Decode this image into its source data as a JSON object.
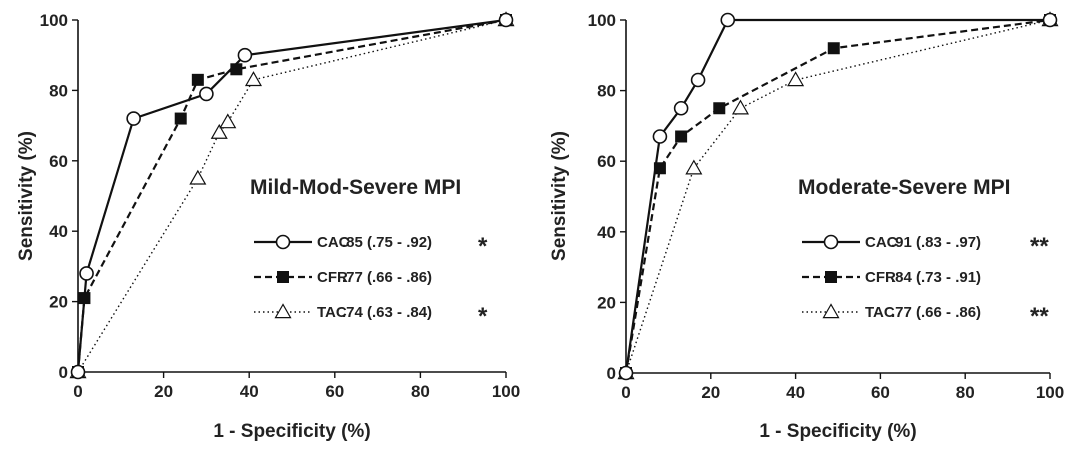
{
  "chart_data": [
    {
      "type": "line",
      "title": "Mild-Mod-Severe  MPI",
      "xlabel": "1 - Specificity (%)",
      "ylabel": "Sensitivity (%)",
      "xlim": [
        0,
        100
      ],
      "ylim": [
        0,
        100
      ],
      "xticks": [
        "0",
        "20",
        "40",
        "60",
        "80",
        "100"
      ],
      "yticks": [
        "0",
        "20",
        "40",
        "60",
        "80",
        "100"
      ],
      "legend_position": "lower-right",
      "series": [
        {
          "name": "CAC",
          "label": ".85 (.75 - .92)",
          "significance": "*",
          "line_style": "solid",
          "marker": "open-circle",
          "points": [
            [
              0,
              0
            ],
            [
              2,
              28
            ],
            [
              13,
              72
            ],
            [
              30,
              79
            ],
            [
              39,
              90
            ],
            [
              100,
              100
            ]
          ]
        },
        {
          "name": "CFR",
          "label": ".77 (.66 - .86)",
          "significance": "",
          "line_style": "dashed",
          "marker": "filled-square",
          "points": [
            [
              0,
              0
            ],
            [
              1.5,
              21
            ],
            [
              24,
              72
            ],
            [
              28,
              83
            ],
            [
              37,
              86
            ],
            [
              100,
              100
            ]
          ]
        },
        {
          "name": "TAC",
          "label": ".74 (.63 - .84)",
          "significance": "*",
          "line_style": "dotted",
          "marker": "open-triangle",
          "points": [
            [
              0,
              0
            ],
            [
              28,
              55
            ],
            [
              33,
              68
            ],
            [
              35,
              71
            ],
            [
              41,
              83
            ],
            [
              100,
              100
            ]
          ]
        }
      ]
    },
    {
      "type": "line",
      "title": "Moderate-Severe MPI",
      "xlabel": "1 - Specificity (%)",
      "ylabel": "Sensitivity (%)",
      "xlim": [
        0,
        100
      ],
      "ylim": [
        0,
        100
      ],
      "xticks": [
        "0",
        "20",
        "40",
        "60",
        "80",
        "100"
      ],
      "yticks": [
        "0",
        "20",
        "40",
        "60",
        "80",
        "100"
      ],
      "legend_position": "lower-right",
      "series": [
        {
          "name": "CAC",
          "label": ".91 (.83 - .97)",
          "significance": "**",
          "line_style": "solid",
          "marker": "open-circle",
          "points": [
            [
              0,
              0
            ],
            [
              8,
              67
            ],
            [
              13,
              75
            ],
            [
              17,
              83
            ],
            [
              24,
              100
            ],
            [
              100,
              100
            ]
          ]
        },
        {
          "name": "CFR",
          "label": ".84 (.73 - .91)",
          "significance": "",
          "line_style": "dashed",
          "marker": "filled-square",
          "points": [
            [
              0,
              0
            ],
            [
              8,
              58
            ],
            [
              13,
              67
            ],
            [
              22,
              75
            ],
            [
              49,
              92
            ],
            [
              100,
              100
            ]
          ]
        },
        {
          "name": "TAC",
          "label": ".77 (.66 - .86)",
          "significance": "**",
          "line_style": "dotted",
          "marker": "open-triangle",
          "points": [
            [
              0,
              0
            ],
            [
              16,
              58
            ],
            [
              27,
              75
            ],
            [
              40,
              83
            ],
            [
              100,
              100
            ]
          ]
        }
      ]
    }
  ]
}
